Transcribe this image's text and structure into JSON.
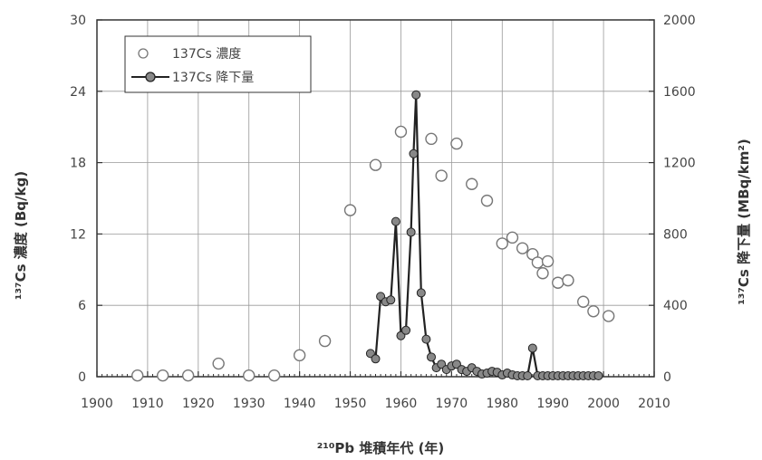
{
  "chart_data": {
    "type": "scatter+line",
    "xlabel": "²¹⁰Pb 堆積年代 (年)",
    "ylabel_left": "¹³⁷Cs 濃度 (Bq/kg)",
    "ylabel_right": "¹³⁷Cs 降下量 (MBq/km²)",
    "xlim": [
      1900,
      2010
    ],
    "ylim_left": [
      0,
      30
    ],
    "ylim_right": [
      0,
      2000
    ],
    "x_ticks": [
      "1900",
      "1910",
      "1920",
      "1930",
      "1940",
      "1950",
      "1960",
      "1970",
      "1980",
      "1990",
      "2000",
      "2010"
    ],
    "y_left_ticks": [
      "0",
      "6",
      "12",
      "18",
      "24",
      "30"
    ],
    "y_right_ticks": [
      "0",
      "400",
      "800",
      "1200",
      "1600",
      "2000"
    ],
    "grid": true,
    "legend_position": "top-left",
    "series": [
      {
        "name": "137Cs 濃度",
        "axis": "left",
        "style": "open-circle",
        "color": "#777777",
        "points": [
          [
            1908,
            0.1
          ],
          [
            1913,
            0.1
          ],
          [
            1918,
            0.1
          ],
          [
            1924,
            1.1
          ],
          [
            1930,
            0.1
          ],
          [
            1935,
            0.1
          ],
          [
            1940,
            1.8
          ],
          [
            1945,
            3.0
          ],
          [
            1950,
            14.0
          ],
          [
            1955,
            17.8
          ],
          [
            1960,
            20.6
          ],
          [
            1966,
            20.0
          ],
          [
            1968,
            16.9
          ],
          [
            1971,
            19.6
          ],
          [
            1974,
            16.2
          ],
          [
            1977,
            14.8
          ],
          [
            1980,
            11.2
          ],
          [
            1982,
            11.7
          ],
          [
            1984,
            10.8
          ],
          [
            1986,
            10.3
          ],
          [
            1987,
            9.6
          ],
          [
            1988,
            8.7
          ],
          [
            1989,
            9.7
          ],
          [
            1991,
            7.9
          ],
          [
            1993,
            8.1
          ],
          [
            1996,
            6.3
          ],
          [
            1998,
            5.5
          ],
          [
            2001,
            5.1
          ]
        ]
      },
      {
        "name": "137Cs 降下量",
        "axis": "right",
        "style": "line-filled-circle",
        "color": "#222222",
        "marker_color": "#888888",
        "points": [
          [
            1954,
            130
          ],
          [
            1955,
            100
          ],
          [
            1956,
            450
          ],
          [
            1957,
            420
          ],
          [
            1958,
            430
          ],
          [
            1959,
            870
          ],
          [
            1960,
            230
          ],
          [
            1961,
            260
          ],
          [
            1962,
            810
          ],
          [
            1962.5,
            1250
          ],
          [
            1963,
            1580
          ],
          [
            1964,
            470
          ],
          [
            1965,
            210
          ],
          [
            1966,
            110
          ],
          [
            1967,
            50
          ],
          [
            1968,
            70
          ],
          [
            1969,
            40
          ],
          [
            1970,
            60
          ],
          [
            1971,
            70
          ],
          [
            1972,
            40
          ],
          [
            1973,
            30
          ],
          [
            1974,
            50
          ],
          [
            1975,
            30
          ],
          [
            1976,
            15
          ],
          [
            1977,
            20
          ],
          [
            1978,
            30
          ],
          [
            1979,
            25
          ],
          [
            1980,
            10
          ],
          [
            1981,
            20
          ],
          [
            1982,
            10
          ],
          [
            1983,
            5
          ],
          [
            1984,
            5
          ],
          [
            1985,
            5
          ],
          [
            1986,
            160
          ],
          [
            1987,
            5
          ],
          [
            1988,
            5
          ],
          [
            1989,
            5
          ],
          [
            1990,
            5
          ],
          [
            1991,
            5
          ],
          [
            1992,
            5
          ],
          [
            1993,
            5
          ],
          [
            1994,
            5
          ],
          [
            1995,
            5
          ],
          [
            1996,
            5
          ],
          [
            1997,
            5
          ],
          [
            1998,
            5
          ],
          [
            1999,
            5
          ]
        ]
      }
    ]
  }
}
